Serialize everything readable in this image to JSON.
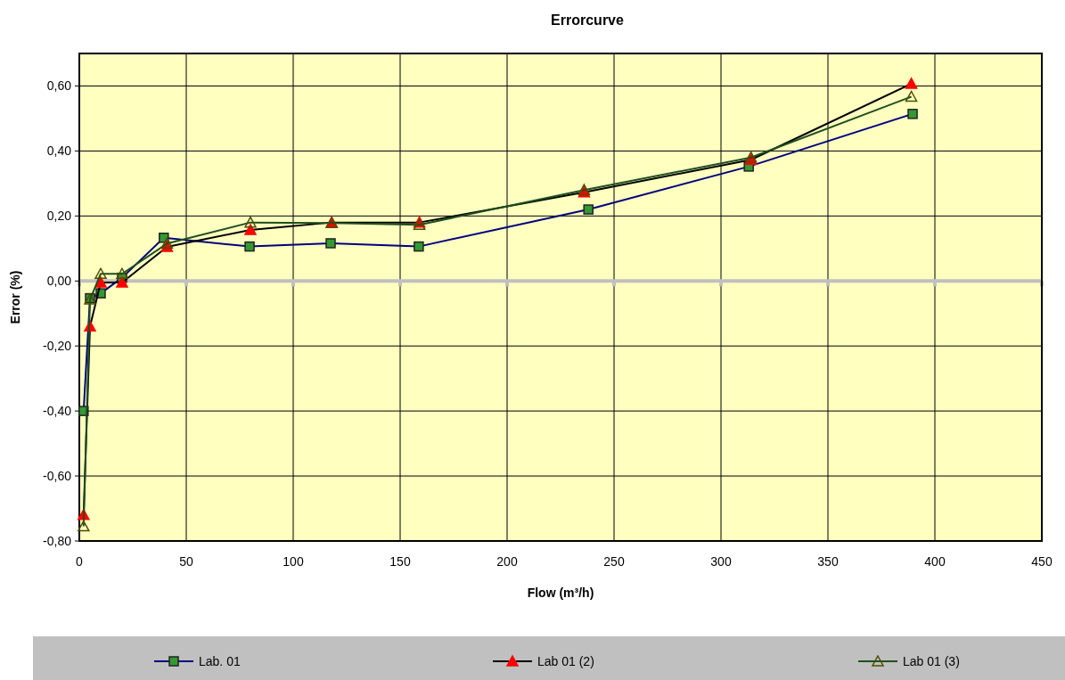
{
  "chart_data": {
    "type": "line",
    "title": "Errorcurve",
    "xlabel": "Flow (m³/h)",
    "ylabel": "Error (%)",
    "xlim": [
      0,
      450
    ],
    "xticks": [
      0,
      50,
      100,
      150,
      200,
      250,
      300,
      350,
      400,
      450
    ],
    "ylim": [
      -0.8,
      0.7
    ],
    "yticks": [
      {
        "value": -0.8,
        "label": "-0,80"
      },
      {
        "value": -0.6,
        "label": "-0,60"
      },
      {
        "value": -0.4,
        "label": "-0,40"
      },
      {
        "value": -0.2,
        "label": "-0,20"
      },
      {
        "value": 0,
        "label": "0,00"
      },
      {
        "value": 0.2,
        "label": "0,20"
      },
      {
        "value": 0.4,
        "label": "0,40"
      },
      {
        "value": 0.6,
        "label": "0,60"
      }
    ],
    "grid": true,
    "legend": "bottom",
    "ref_lines": [
      {
        "axis": "y",
        "value": 0,
        "color": "#c0c0c0"
      }
    ],
    "series": [
      {
        "name": "Lab. 01",
        "color": "#000080",
        "marker": "square",
        "colors": [
          "#339933",
          "#339933",
          "#339933",
          "#339933",
          "#339933",
          "#339933",
          "#339933",
          "#339933",
          "#339933",
          "#339933",
          "#339933"
        ],
        "x": [
          2,
          5,
          10,
          20,
          39.5,
          79.6,
          117.5,
          158.7,
          238,
          313,
          389.6
        ],
        "values": [
          -0.4,
          -0.053,
          -0.038,
          0.01,
          0.133,
          0.106,
          0.116,
          0.106,
          0.22,
          0.352,
          0.514
        ]
      },
      {
        "name": "Lab 01 (2)",
        "color": "#000000",
        "marker": "triangle",
        "colors": [
          "#ff0000",
          "#ff0000",
          "#ff0000",
          "#ff0000",
          "#ff0000",
          "#ff0000",
          "#ff0000",
          "#ff0000",
          "#ff0000",
          "#ff0000",
          "#ff0000"
        ],
        "x": [
          2,
          5,
          10,
          20,
          41,
          80,
          118,
          159,
          236,
          314,
          389
        ],
        "values": [
          -0.72,
          -0.14,
          -0.005,
          -0.005,
          0.105,
          0.157,
          0.18,
          0.18,
          0.273,
          0.373,
          0.607
        ]
      },
      {
        "name": "Lab 01 (3)",
        "color": "#1f4f1f",
        "marker": "triangle",
        "x": [
          2,
          5,
          10,
          20,
          41,
          80,
          118,
          159,
          236,
          314,
          389
        ],
        "values": [
          -0.755,
          -0.057,
          0.022,
          0.022,
          0.115,
          0.18,
          0.178,
          0.173,
          0.28,
          0.38,
          0.567
        ]
      }
    ]
  }
}
